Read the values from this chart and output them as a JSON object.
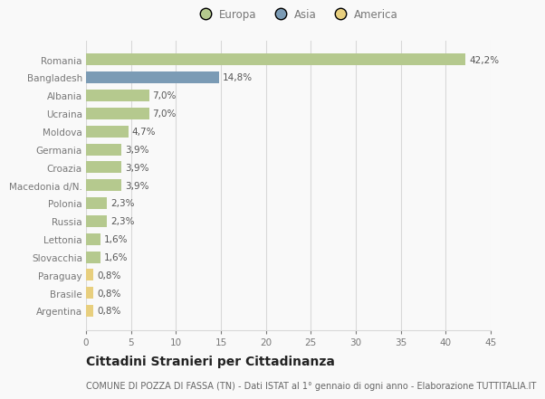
{
  "categories": [
    "Romania",
    "Bangladesh",
    "Albania",
    "Ucraina",
    "Moldova",
    "Germania",
    "Croazia",
    "Macedonia d/N.",
    "Polonia",
    "Russia",
    "Lettonia",
    "Slovacchia",
    "Paraguay",
    "Brasile",
    "Argentina"
  ],
  "values": [
    42.2,
    14.8,
    7.0,
    7.0,
    4.7,
    3.9,
    3.9,
    3.9,
    2.3,
    2.3,
    1.6,
    1.6,
    0.8,
    0.8,
    0.8
  ],
  "labels": [
    "42,2%",
    "14,8%",
    "7,0%",
    "7,0%",
    "4,7%",
    "3,9%",
    "3,9%",
    "3,9%",
    "2,3%",
    "2,3%",
    "1,6%",
    "1,6%",
    "0,8%",
    "0,8%",
    "0,8%"
  ],
  "colors": [
    "#b5c98e",
    "#7b9bb5",
    "#b5c98e",
    "#b5c98e",
    "#b5c98e",
    "#b5c98e",
    "#b5c98e",
    "#b5c98e",
    "#b5c98e",
    "#b5c98e",
    "#b5c98e",
    "#b5c98e",
    "#e8cf7e",
    "#e8cf7e",
    "#e8cf7e"
  ],
  "legend_labels": [
    "Europa",
    "Asia",
    "America"
  ],
  "legend_colors": [
    "#b5c98e",
    "#7b9bb5",
    "#e8cf7e"
  ],
  "xlim": [
    0,
    45
  ],
  "xticks": [
    0,
    5,
    10,
    15,
    20,
    25,
    30,
    35,
    40,
    45
  ],
  "title": "Cittadini Stranieri per Cittadinanza",
  "subtitle": "COMUNE DI POZZA DI FASSA (TN) - Dati ISTAT al 1° gennaio di ogni anno - Elaborazione TUTTITALIA.IT",
  "bg_color": "#f9f9f9",
  "grid_color": "#d8d8d8",
  "bar_height": 0.65,
  "label_fontsize": 7.5,
  "tick_fontsize": 7.5,
  "legend_fontsize": 8.5,
  "title_fontsize": 10,
  "subtitle_fontsize": 7,
  "label_color": "#555555",
  "tick_color": "#777777",
  "title_color": "#222222",
  "subtitle_color": "#666666"
}
